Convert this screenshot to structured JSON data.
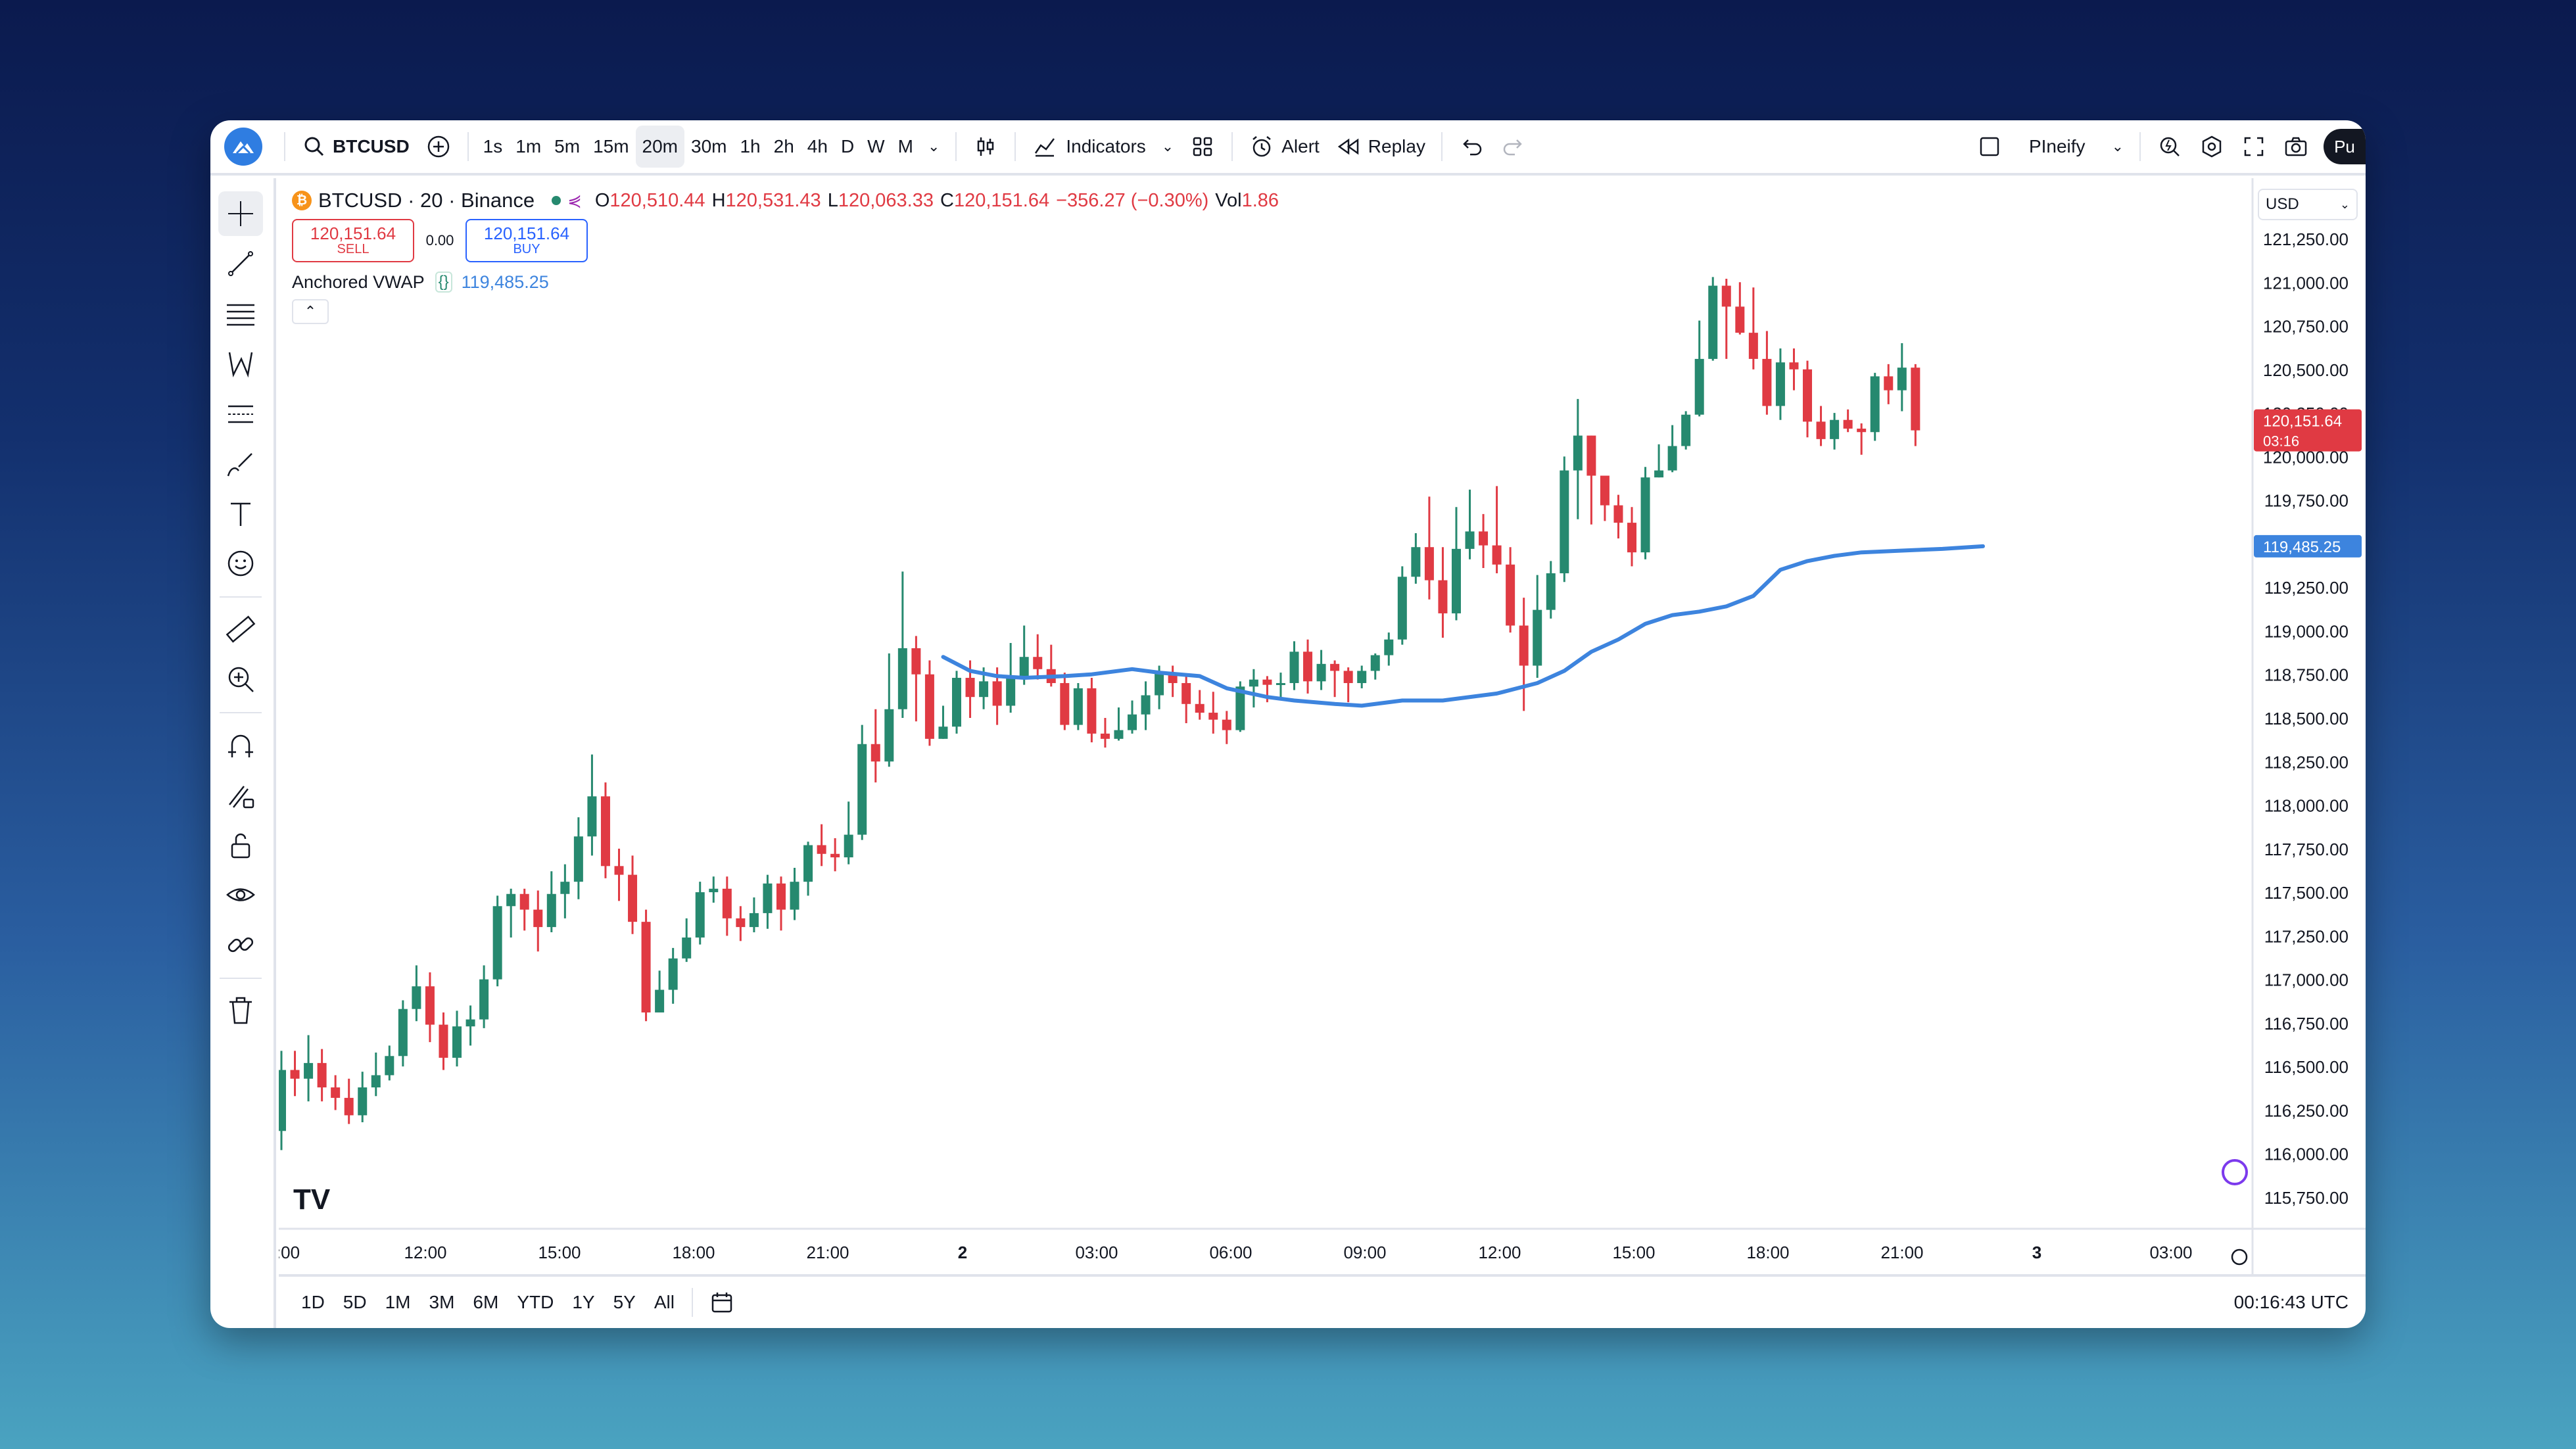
{
  "topbar": {
    "symbol": "BTCUSD",
    "intervals": [
      "1s",
      "1m",
      "5m",
      "15m",
      "20m",
      "30m",
      "1h",
      "2h",
      "4h",
      "D",
      "W",
      "M"
    ],
    "active_interval": "20m",
    "indicators_label": "Indicators",
    "alert_label": "Alert",
    "replay_label": "Replay",
    "layout_name": "PIneify",
    "publish_label": "Pu"
  },
  "legend": {
    "title": "BTCUSD · 20 · Binance",
    "o_label": "O",
    "o_value": "120,510.44",
    "h_label": "H",
    "h_value": "120,531.43",
    "l_label": "L",
    "l_value": "120,063.33",
    "c_label": "C",
    "c_value": "120,151.64",
    "change": "−356.27 (−0.30%)",
    "vol_label": "Vol",
    "vol_value": "1.86",
    "sell_price": "120,151.64",
    "sell_label": "SELL",
    "spread": "0.00",
    "buy_price": "120,151.64",
    "buy_label": "BUY",
    "indicator_name": "Anchored VWAP",
    "indicator_value": "119,485.25"
  },
  "currency": "USD",
  "price_tag": {
    "price": "120,151.64",
    "countdown": "03:16"
  },
  "vwap_tag": "119,485.25",
  "colors": {
    "up": "#26896f",
    "down": "#e03a43",
    "vwap": "#3d84de",
    "accent": "#2962ff"
  },
  "range_buttons": [
    "1D",
    "5D",
    "1M",
    "3M",
    "6M",
    "YTD",
    "1Y",
    "5Y",
    "All"
  ],
  "clock": "00:16:43 UTC",
  "chart_data": {
    "type": "candlestick",
    "title": "BTCUSD · 20 · Binance",
    "y_ticks": [
      "121,250.00",
      "121,000.00",
      "120,750.00",
      "120,500.00",
      "120,250.00",
      "120,000.00",
      "119,750.00",
      "119,500.00",
      "119,250.00",
      "119,000.00",
      "118,750.00",
      "118,500.00",
      "118,250.00",
      "118,000.00",
      "117,750.00",
      "117,500.00",
      "117,250.00",
      "117,000.00",
      "116,750.00",
      "116,500.00",
      "116,250.00",
      "116,000.00",
      "115,750.00"
    ],
    "y_tick_values": [
      121250,
      121000,
      120750,
      120500,
      120250,
      120000,
      119750,
      119500,
      119250,
      119000,
      118750,
      118500,
      118250,
      118000,
      117750,
      117500,
      117250,
      117000,
      116750,
      116500,
      116250,
      116000,
      115750
    ],
    "ylim": [
      115600,
      121450
    ],
    "x_ticks": [
      ":00",
      "12:00",
      "15:00",
      "18:00",
      "21:00",
      "2",
      "03:00",
      "06:00",
      "09:00",
      "12:00",
      "15:00",
      "18:00",
      "21:00",
      "3",
      "03:00"
    ],
    "bold_x_ticks": [
      "2",
      "3"
    ],
    "candles": [
      [
        116130,
        116480,
        116590,
        116020
      ],
      [
        116480,
        116430,
        116590,
        116330
      ],
      [
        116430,
        116520,
        116680,
        116300
      ],
      [
        116520,
        116380,
        116600,
        116300
      ],
      [
        116380,
        116320,
        116450,
        116250
      ],
      [
        116320,
        116220,
        116430,
        116170
      ],
      [
        116220,
        116380,
        116470,
        116180
      ],
      [
        116380,
        116450,
        116580,
        116330
      ],
      [
        116450,
        116560,
        116620,
        116420
      ],
      [
        116560,
        116830,
        116880,
        116500
      ],
      [
        116830,
        116960,
        117080,
        116760
      ],
      [
        116960,
        116740,
        117040,
        116640
      ],
      [
        116740,
        116550,
        116810,
        116480
      ],
      [
        116550,
        116730,
        116820,
        116500
      ],
      [
        116730,
        116770,
        116850,
        116620
      ],
      [
        116770,
        117000,
        117080,
        116720
      ],
      [
        117000,
        117420,
        117480,
        116960
      ],
      [
        117420,
        117490,
        117520,
        117240
      ],
      [
        117490,
        117400,
        117520,
        117280
      ],
      [
        117400,
        117300,
        117510,
        117160
      ],
      [
        117300,
        117490,
        117620,
        117270
      ],
      [
        117490,
        117560,
        117660,
        117350
      ],
      [
        117560,
        117820,
        117930,
        117460
      ],
      [
        117820,
        118050,
        118290,
        117710
      ],
      [
        118050,
        117650,
        118130,
        117580
      ],
      [
        117650,
        117600,
        117750,
        117450
      ],
      [
        117600,
        117330,
        117710,
        117260
      ],
      [
        117330,
        116810,
        117400,
        116760
      ],
      [
        116810,
        116940,
        117050,
        116830
      ],
      [
        116940,
        117120,
        117180,
        116860
      ],
      [
        117120,
        117240,
        117350,
        117100
      ],
      [
        117240,
        117500,
        117560,
        117200
      ],
      [
        117500,
        117520,
        117590,
        117440
      ],
      [
        117520,
        117350,
        117590,
        117250
      ],
      [
        117350,
        117300,
        117420,
        117220
      ],
      [
        117300,
        117380,
        117470,
        117270
      ],
      [
        117380,
        117550,
        117600,
        117290
      ],
      [
        117550,
        117400,
        117590,
        117280
      ],
      [
        117400,
        117560,
        117640,
        117340
      ],
      [
        117560,
        117770,
        117790,
        117480
      ],
      [
        117770,
        117720,
        117890,
        117650
      ],
      [
        117720,
        117700,
        117810,
        117620
      ],
      [
        117700,
        117830,
        118020,
        117660
      ],
      [
        117830,
        118350,
        118460,
        117800
      ],
      [
        118350,
        118250,
        118550,
        118130
      ],
      [
        118250,
        118550,
        118870,
        118220
      ],
      [
        118550,
        118900,
        119340,
        118500
      ],
      [
        118900,
        118750,
        118970,
        118480
      ],
      [
        118750,
        118380,
        118830,
        118340
      ],
      [
        118380,
        118450,
        118570,
        118380
      ],
      [
        118450,
        118730,
        118770,
        118410
      ],
      [
        118730,
        118620,
        118830,
        118500
      ],
      [
        118620,
        118710,
        118790,
        118550
      ],
      [
        118710,
        118570,
        118790,
        118460
      ],
      [
        118570,
        118740,
        118930,
        118530
      ],
      [
        118740,
        118850,
        119030,
        118690
      ],
      [
        118850,
        118780,
        118980,
        118720
      ],
      [
        118780,
        118700,
        118920,
        118680
      ],
      [
        118700,
        118460,
        118760,
        118430
      ],
      [
        118460,
        118670,
        118700,
        118430
      ],
      [
        118670,
        118410,
        118730,
        118360
      ],
      [
        118410,
        118380,
        118500,
        118330
      ],
      [
        118380,
        118430,
        118560,
        118370
      ],
      [
        118430,
        118520,
        118600,
        118410
      ],
      [
        118520,
        118630,
        118710,
        118430
      ],
      [
        118630,
        118760,
        118800,
        118550
      ],
      [
        118760,
        118700,
        118800,
        118620
      ],
      [
        118700,
        118580,
        118740,
        118470
      ],
      [
        118580,
        118530,
        118660,
        118490
      ],
      [
        118530,
        118490,
        118650,
        118410
      ],
      [
        118490,
        118430,
        118540,
        118350
      ],
      [
        118430,
        118680,
        118710,
        118420
      ],
      [
        118680,
        118720,
        118780,
        118560
      ],
      [
        118720,
        118690,
        118740,
        118590
      ],
      [
        118690,
        118700,
        118760,
        118600
      ],
      [
        118700,
        118880,
        118940,
        118660
      ],
      [
        118880,
        118710,
        118950,
        118640
      ],
      [
        118710,
        118810,
        118890,
        118660
      ],
      [
        118810,
        118770,
        118830,
        118620
      ],
      [
        118770,
        118700,
        118790,
        118590
      ],
      [
        118700,
        118770,
        118800,
        118670
      ],
      [
        118770,
        118860,
        118870,
        118720
      ],
      [
        118860,
        118950,
        118990,
        118800
      ],
      [
        118950,
        119310,
        119370,
        118920
      ],
      [
        119310,
        119480,
        119560,
        119270
      ],
      [
        119480,
        119290,
        119770,
        119180
      ],
      [
        119290,
        119100,
        119480,
        118960
      ],
      [
        119100,
        119470,
        119710,
        119060
      ],
      [
        119470,
        119570,
        119810,
        119410
      ],
      [
        119570,
        119490,
        119670,
        119360
      ],
      [
        119490,
        119380,
        119830,
        119330
      ],
      [
        119380,
        119030,
        119480,
        118990
      ],
      [
        119030,
        118800,
        119190,
        118540
      ],
      [
        118800,
        119120,
        119320,
        118730
      ],
      [
        119120,
        119330,
        119400,
        119070
      ],
      [
        119330,
        119920,
        120000,
        119280
      ],
      [
        119920,
        120120,
        120330,
        119640
      ],
      [
        120120,
        119890,
        120120,
        119610
      ],
      [
        119890,
        119720,
        119870,
        119630
      ],
      [
        119720,
        119620,
        119780,
        119530
      ],
      [
        119620,
        119450,
        119710,
        119370
      ],
      [
        119450,
        119880,
        119940,
        119410
      ],
      [
        119880,
        119920,
        120070,
        119880
      ],
      [
        119920,
        120060,
        120180,
        119910
      ],
      [
        120060,
        120240,
        120260,
        120040
      ],
      [
        120240,
        120560,
        120780,
        120230
      ],
      [
        120560,
        120980,
        121030,
        120550
      ],
      [
        120980,
        120860,
        121020,
        120560
      ],
      [
        120860,
        120710,
        121000,
        120700
      ],
      [
        120710,
        120560,
        120970,
        120500
      ],
      [
        120560,
        120290,
        120720,
        120240
      ],
      [
        120290,
        120540,
        120620,
        120210
      ],
      [
        120540,
        120500,
        120620,
        120380
      ],
      [
        120500,
        120200,
        120550,
        120110
      ],
      [
        120200,
        120100,
        120290,
        120060
      ],
      [
        120100,
        120210,
        120250,
        120040
      ],
      [
        120210,
        120160,
        120270,
        120140
      ],
      [
        120160,
        120140,
        120190,
        120010
      ],
      [
        120140,
        120460,
        120480,
        120090
      ],
      [
        120460,
        120380,
        120530,
        120300
      ],
      [
        120380,
        120510,
        120650,
        120260
      ],
      [
        120510,
        120150,
        120530,
        120060
      ]
    ],
    "vwap": [
      [
        49,
        118850
      ],
      [
        51,
        118770
      ],
      [
        53,
        118740
      ],
      [
        55,
        118730
      ],
      [
        58,
        118740
      ],
      [
        60,
        118750
      ],
      [
        63,
        118780
      ],
      [
        65,
        118760
      ],
      [
        68,
        118740
      ],
      [
        70,
        118670
      ],
      [
        73,
        118620
      ],
      [
        75,
        118600
      ],
      [
        78,
        118580
      ],
      [
        80,
        118570
      ],
      [
        83,
        118600
      ],
      [
        86,
        118600
      ],
      [
        90,
        118640
      ],
      [
        93,
        118700
      ],
      [
        95,
        118770
      ],
      [
        97,
        118880
      ],
      [
        99,
        118950
      ],
      [
        101,
        119040
      ],
      [
        103,
        119090
      ],
      [
        105,
        119110
      ],
      [
        107,
        119140
      ],
      [
        109,
        119200
      ],
      [
        111,
        119350
      ],
      [
        113,
        119400
      ],
      [
        115,
        119430
      ],
      [
        117,
        119450
      ],
      [
        120,
        119460
      ],
      [
        123,
        119470
      ],
      [
        126,
        119485
      ]
    ]
  }
}
